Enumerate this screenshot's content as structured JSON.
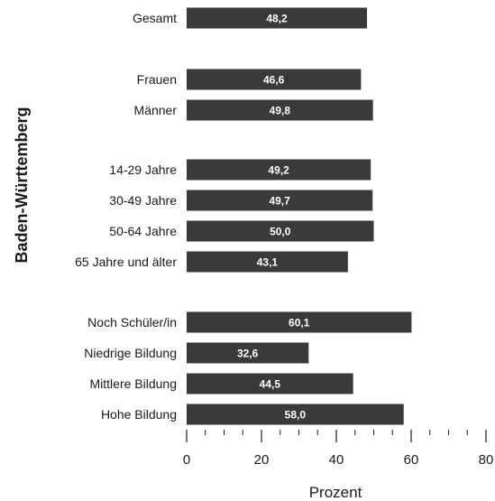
{
  "chart_data": {
    "type": "bar",
    "orientation": "horizontal",
    "ylabel": "Baden-Württemberg",
    "xlabel": "Prozent",
    "xlim": [
      0,
      80
    ],
    "xticks": [
      0,
      20,
      40,
      60,
      80
    ],
    "bar_color": "#3a3a3a",
    "groups": [
      {
        "categories": [
          "Gesamt"
        ],
        "values": [
          48.2
        ],
        "labels": [
          "48,2"
        ]
      },
      {
        "categories": [
          "Frauen",
          "Männer"
        ],
        "values": [
          46.6,
          49.8
        ],
        "labels": [
          "46,6",
          "49,8"
        ]
      },
      {
        "categories": [
          "14-29 Jahre",
          "30-49 Jahre",
          "50-64 Jahre",
          "65 Jahre und älter"
        ],
        "values": [
          49.2,
          49.7,
          50.0,
          43.1
        ],
        "labels": [
          "49,2",
          "49,7",
          "50,0",
          "43,1"
        ]
      },
      {
        "categories": [
          "Noch Schüler/in",
          "Niedrige Bildung",
          "Mittlere Bildung",
          "Hohe Bildung"
        ],
        "values": [
          60.1,
          32.6,
          44.5,
          58.0
        ],
        "labels": [
          "60,1",
          "32,6",
          "44,5",
          "58,0"
        ]
      }
    ]
  }
}
